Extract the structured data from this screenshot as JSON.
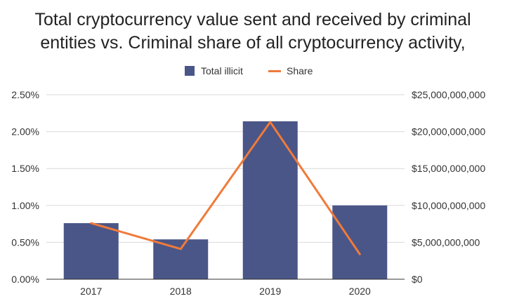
{
  "chart_data": {
    "type": "bar+line",
    "title_lines": [
      "Total cryptocurrency value sent and received by criminal",
      "entities vs. Criminal share of all cryptocurrency activity,"
    ],
    "categories": [
      "2017",
      "2018",
      "2019",
      "2020"
    ],
    "series": [
      {
        "name": "Total illicit",
        "type": "bar",
        "axis": "right",
        "color": "#4a5687",
        "values": [
          7600000000,
          5400000000,
          21400000000,
          10000000000
        ]
      },
      {
        "name": "Share",
        "type": "line",
        "axis": "left",
        "color": "#f07a3a",
        "values": [
          0.76,
          0.41,
          2.13,
          0.34
        ]
      }
    ],
    "left_axis": {
      "range": [
        0,
        2.5
      ],
      "ticks": [
        {
          "value": 0,
          "label": "0.00%"
        },
        {
          "value": 0.5,
          "label": "0.50%"
        },
        {
          "value": 1.0,
          "label": "1.00%"
        },
        {
          "value": 1.5,
          "label": "1.50%"
        },
        {
          "value": 2.0,
          "label": "2.00%"
        },
        {
          "value": 2.5,
          "label": "2.50%"
        }
      ]
    },
    "right_axis": {
      "range": [
        0,
        25000000000
      ],
      "ticks": [
        {
          "value": 0,
          "label": "$0"
        },
        {
          "value": 5000000000,
          "label": "$5,000,000,000"
        },
        {
          "value": 10000000000,
          "label": "$10,000,000,000"
        },
        {
          "value": 15000000000,
          "label": "$15,000,000,000"
        },
        {
          "value": 20000000000,
          "label": "$20,000,000,000"
        },
        {
          "value": 25000000000,
          "label": "$25,000,000,000"
        }
      ]
    },
    "legend": {
      "position": "top"
    },
    "grid": true
  }
}
